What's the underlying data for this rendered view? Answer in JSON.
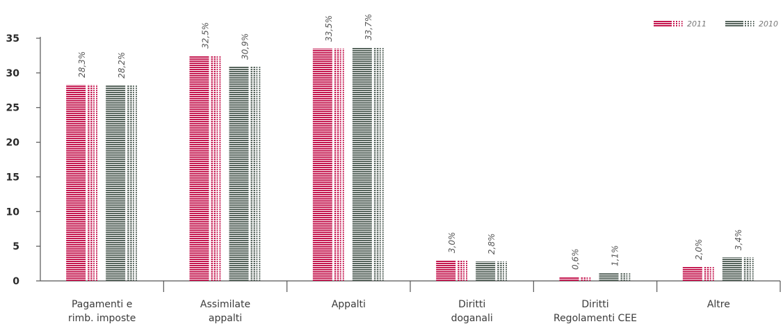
{
  "chart_data": {
    "type": "bar",
    "categories": [
      [
        "Pagamenti e",
        "rimb. imposte"
      ],
      [
        "Assimilate",
        "appalti"
      ],
      [
        "Appalti"
      ],
      [
        "Diritti",
        "doganali"
      ],
      [
        "Diritti",
        "Regolamenti CEE"
      ],
      [
        "Altre"
      ]
    ],
    "series": [
      {
        "name": "2011",
        "color": "#c4174f",
        "values": [
          28.3,
          32.5,
          33.5,
          3.0,
          0.6,
          2.0
        ],
        "labels": [
          "28,3%",
          "32,5%",
          "33,5%",
          "3,0%",
          "0,6%",
          "2,0%"
        ]
      },
      {
        "name": "2010",
        "color": "#56645c",
        "values": [
          28.2,
          30.9,
          33.7,
          2.8,
          1.1,
          3.4
        ],
        "labels": [
          "28,2%",
          "30,9%",
          "33,7%",
          "2,8%",
          "1,1%",
          "3,4%"
        ]
      }
    ],
    "title": "",
    "xlabel": "",
    "ylabel": "",
    "ylim": [
      0,
      35
    ],
    "yticks": [
      0,
      5,
      10,
      15,
      20,
      25,
      30,
      35
    ],
    "grid": false,
    "legend_position": "top-right"
  }
}
